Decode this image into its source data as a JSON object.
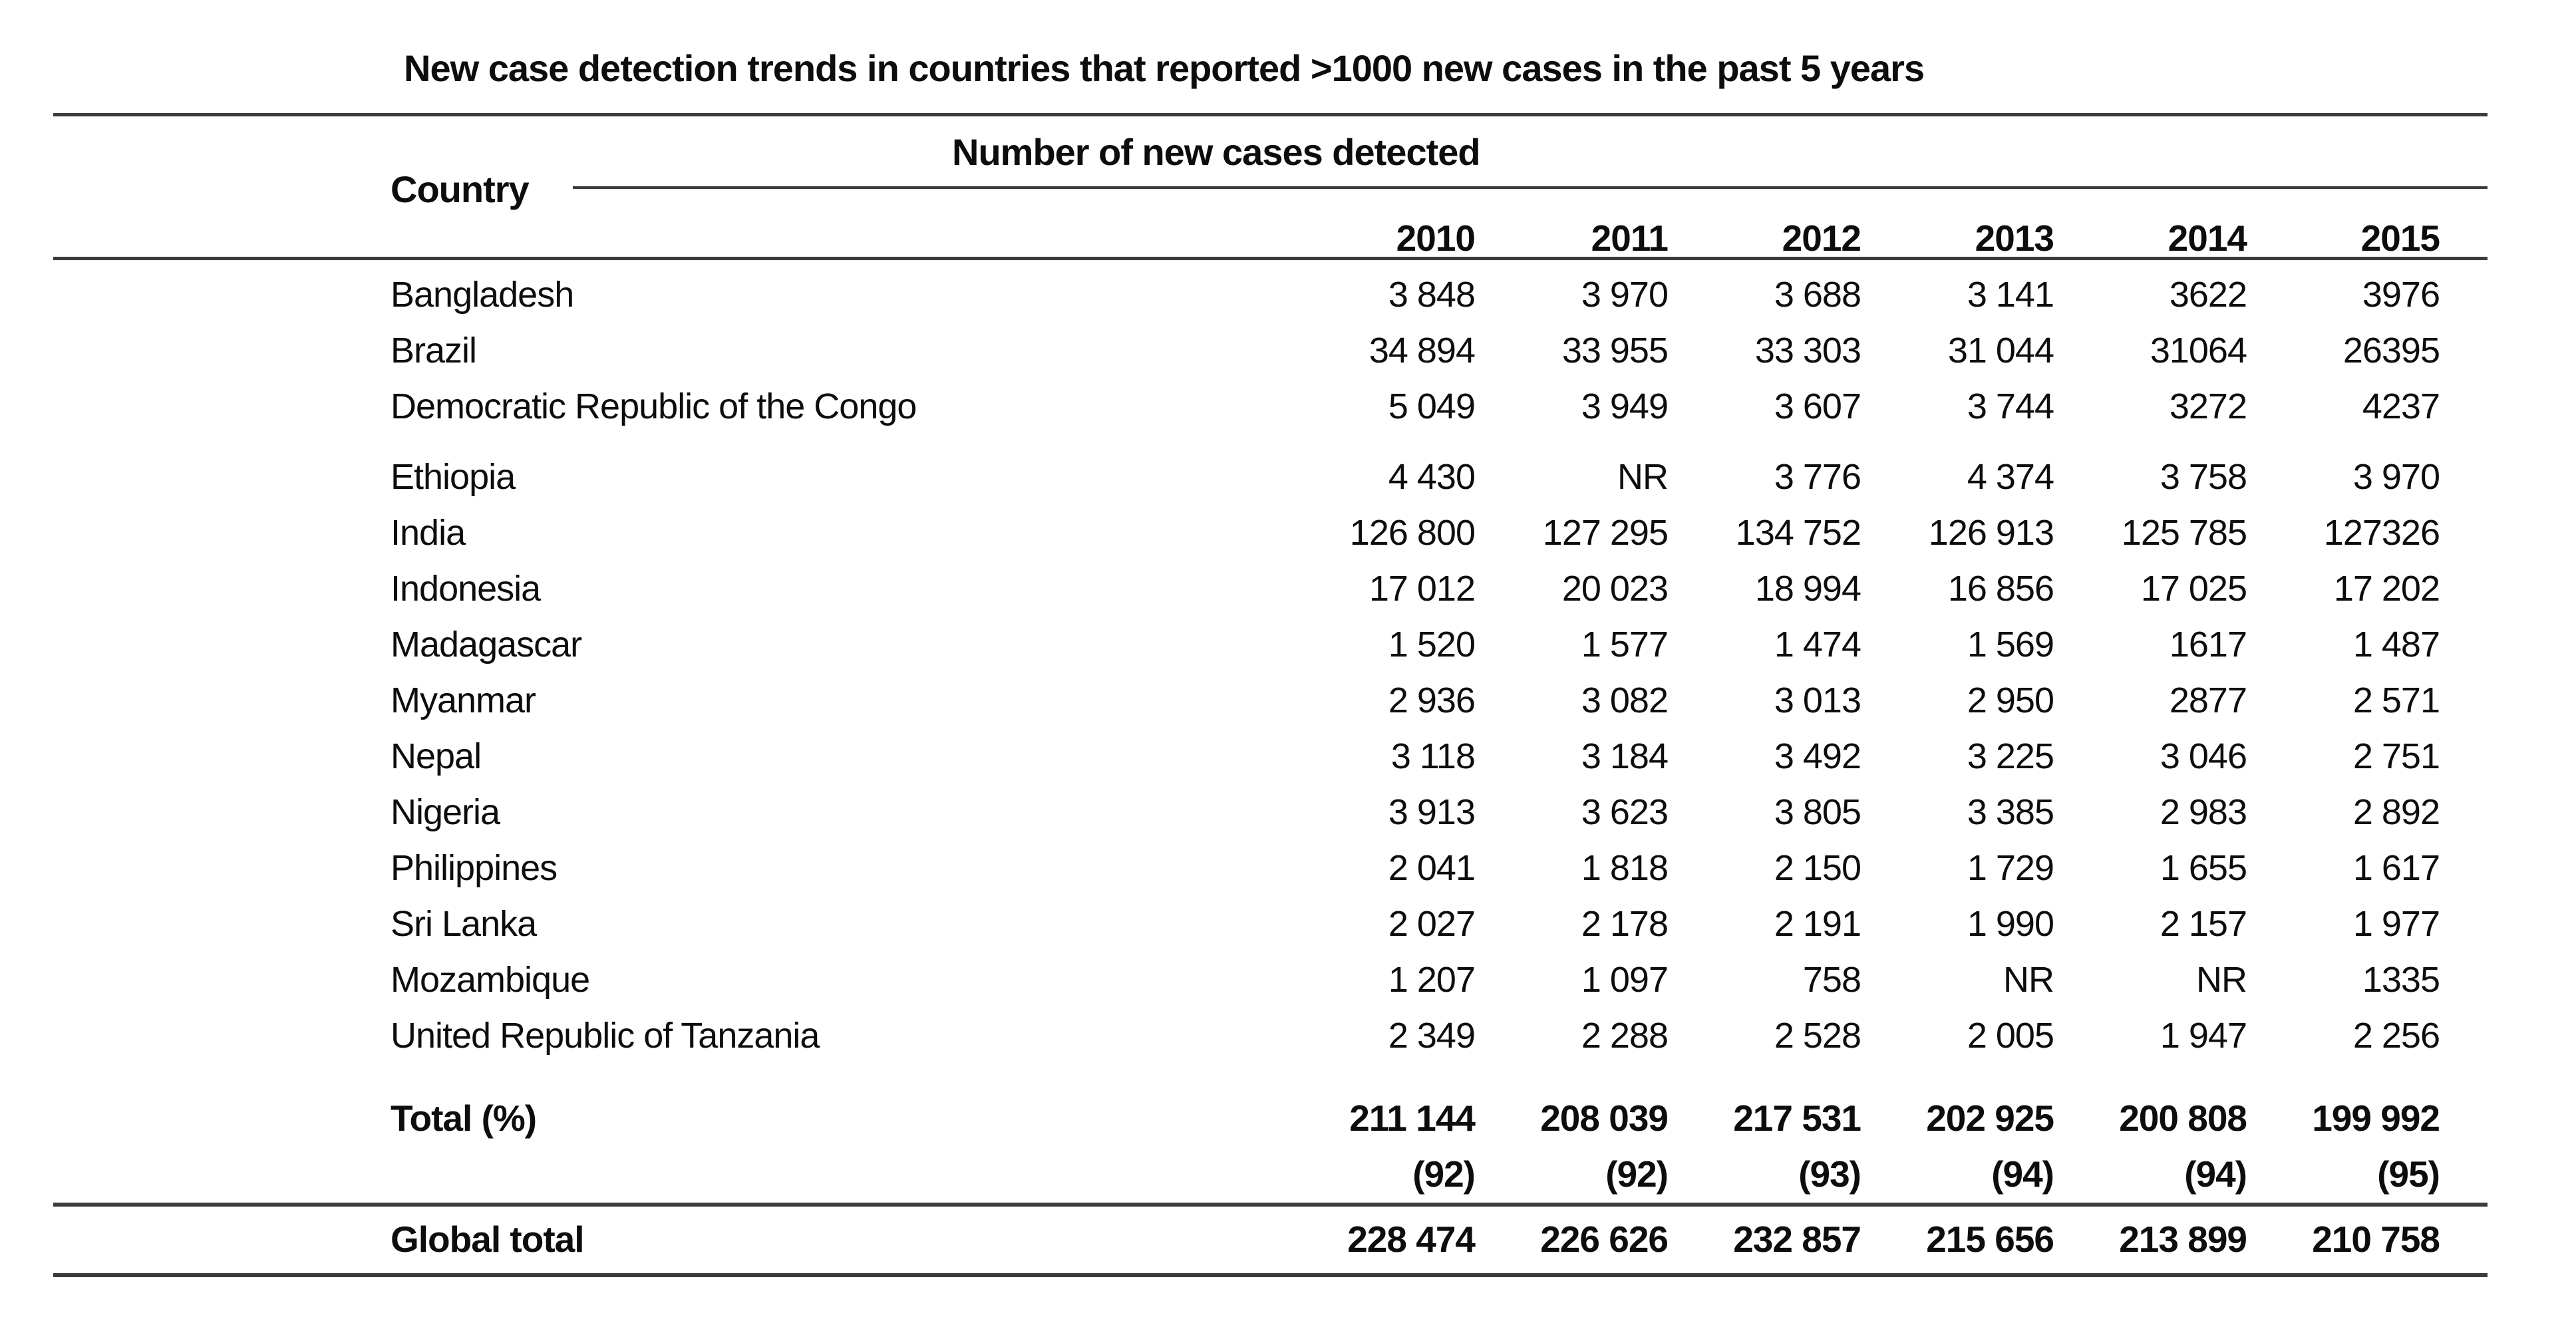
{
  "colors": {
    "background": "#ffffff",
    "text": "#0d0d0d",
    "rule": "#3c3c3c"
  },
  "chart_data": {
    "type": "table",
    "title": "New case detection trends in countries that reported >1000 new cases in the past 5 years",
    "row_header": "Country",
    "group_header": "Number of new cases detected",
    "years": [
      "2010",
      "2011",
      "2012",
      "2013",
      "2014",
      "2015"
    ],
    "rows": [
      {
        "country": "Bangladesh",
        "values": [
          "3 848",
          "3 970",
          "3 688",
          "3 141",
          "3622",
          "3976"
        ]
      },
      {
        "country": "Brazil",
        "values": [
          "34 894",
          "33 955",
          "33 303",
          "31 044",
          "31064",
          "26395"
        ]
      },
      {
        "country": "Democratic Republic of the Congo",
        "values": [
          "5 049",
          "3 949",
          "3 607",
          "3 744",
          "3272",
          "4237"
        ]
      },
      {
        "country": "Ethiopia",
        "gap_before": true,
        "values": [
          "4 430",
          "NR",
          "3 776",
          "4 374",
          "3 758",
          "3 970"
        ]
      },
      {
        "country": "India",
        "values": [
          "126 800",
          "127 295",
          "134 752",
          "126 913",
          "125 785",
          "127326"
        ]
      },
      {
        "country": "Indonesia",
        "values": [
          "17 012",
          "20 023",
          "18 994",
          "16 856",
          "17 025",
          "17 202"
        ]
      },
      {
        "country": "Madagascar",
        "values": [
          "1 520",
          "1 577",
          "1 474",
          "1 569",
          "1617",
          "1 487"
        ]
      },
      {
        "country": "Myanmar",
        "values": [
          "2 936",
          "3 082",
          "3 013",
          "2 950",
          "2877",
          "2 571"
        ]
      },
      {
        "country": "Nepal",
        "values": [
          "3 118",
          "3 184",
          "3 492",
          "3 225",
          "3 046",
          "2 751"
        ]
      },
      {
        "country": "Nigeria",
        "values": [
          "3 913",
          "3 623",
          "3 805",
          "3 385",
          "2 983",
          "2 892"
        ]
      },
      {
        "country": "Philippines",
        "values": [
          "2 041",
          "1 818",
          "2 150",
          "1 729",
          "1 655",
          "1 617"
        ]
      },
      {
        "country": "Sri Lanka",
        "values": [
          "2 027",
          "2 178",
          "2 191",
          "1 990",
          "2 157",
          "1 977"
        ]
      },
      {
        "country": "Mozambique",
        "values": [
          "1 207",
          "1 097",
          "758",
          "NR",
          "NR",
          "1335"
        ]
      },
      {
        "country": "United Republic of Tanzania",
        "values": [
          "2 349",
          "2 288",
          "2 528",
          "2 005",
          "1 947",
          "2 256"
        ]
      }
    ],
    "total_row": {
      "label": "Total (%)",
      "values": [
        "211 144",
        "208 039",
        "217 531",
        "202 925",
        "200 808",
        "199 992"
      ],
      "percent_values": [
        "(92)",
        "(92)",
        "(93)",
        "(94)",
        "(94)",
        "(95)"
      ]
    },
    "global_row": {
      "label": "Global total",
      "values": [
        "228 474",
        "226 626",
        "232 857",
        "215 656",
        "213 899",
        "210 758"
      ]
    }
  }
}
